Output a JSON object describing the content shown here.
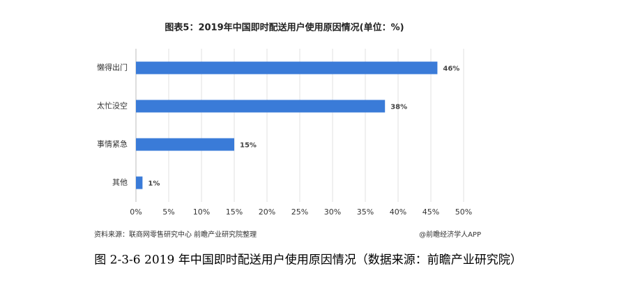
{
  "chart_data": {
    "type": "bar",
    "orientation": "horizontal",
    "title": "图表5：2019年中国即时配送用户使用原因情况(单位：%)",
    "categories": [
      "懒得出门",
      "太忙没空",
      "事情紧急",
      "其他"
    ],
    "values": [
      46,
      38,
      15,
      1
    ],
    "value_labels": [
      "46%",
      "38%",
      "15%",
      "1%"
    ],
    "color": "#3a7bd8",
    "xlim": [
      0,
      50
    ],
    "xticks": [
      {
        "value": 0,
        "label": "0%"
      },
      {
        "value": 5,
        "label": "5%"
      },
      {
        "value": 10,
        "label": "10%"
      },
      {
        "value": 15,
        "label": "15%"
      },
      {
        "value": 20,
        "label": "20%"
      },
      {
        "value": 25,
        "label": "25%"
      },
      {
        "value": 30,
        "label": "30%"
      },
      {
        "value": 35,
        "label": "35%"
      },
      {
        "value": 40,
        "label": "40%"
      },
      {
        "value": 45,
        "label": "45%"
      },
      {
        "value": 50,
        "label": "50%"
      }
    ],
    "grid": true,
    "source": "资料来源：联商网零售研究中心 前瞻产业研究院整理",
    "credit": "@前瞻经济学人APP",
    "caption": "图 2-3-6 2019 年中国即时配送用户使用原因情况（数据来源：前瞻产业研究院）"
  }
}
